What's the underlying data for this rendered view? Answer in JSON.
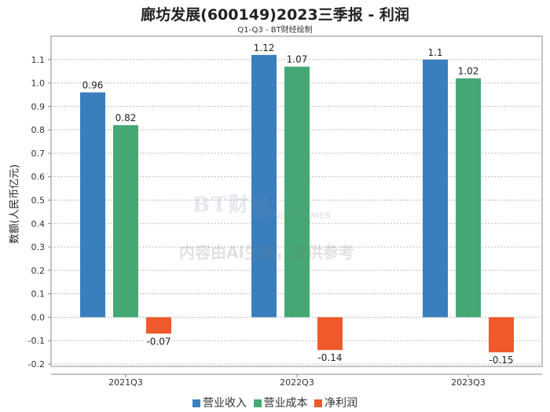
{
  "chart_data": {
    "type": "bar",
    "title": "廊坊发展(600149)2023三季报 - 利润",
    "subtitle": "Q1-Q3 - BT财经绘制",
    "xlabel": "",
    "ylabel": "数额(人民币亿元)",
    "categories": [
      "2021Q3",
      "2022Q3",
      "2023Q3"
    ],
    "series": [
      {
        "name": "营业收入",
        "color": "#3a7fbd",
        "values": [
          0.96,
          1.12,
          1.1
        ],
        "labels": [
          "0.96",
          "1.12",
          "1.1"
        ]
      },
      {
        "name": "营业成本",
        "color": "#45a874",
        "values": [
          0.82,
          1.07,
          1.02
        ],
        "labels": [
          "0.82",
          "1.07",
          "1.02"
        ]
      },
      {
        "name": "净利润",
        "color": "#ee5a2c",
        "values": [
          -0.07,
          -0.14,
          -0.15
        ],
        "labels": [
          "-0.07",
          "-0.14",
          "-0.15"
        ]
      }
    ],
    "ylim": [
      -0.21,
      1.2
    ],
    "yticks": [
      "-0.2",
      "-0.1",
      "0.0",
      "0.1",
      "0.2",
      "0.3",
      "0.4",
      "0.5",
      "0.6",
      "0.7",
      "0.8",
      "0.9",
      "1.0",
      "1.1"
    ],
    "grid": true,
    "legend": "bottom"
  },
  "watermark": {
    "brand": "BT财经",
    "brand_en": "BUSINESS TIMES",
    "notice": "内容由AI生成，仅供参考"
  }
}
